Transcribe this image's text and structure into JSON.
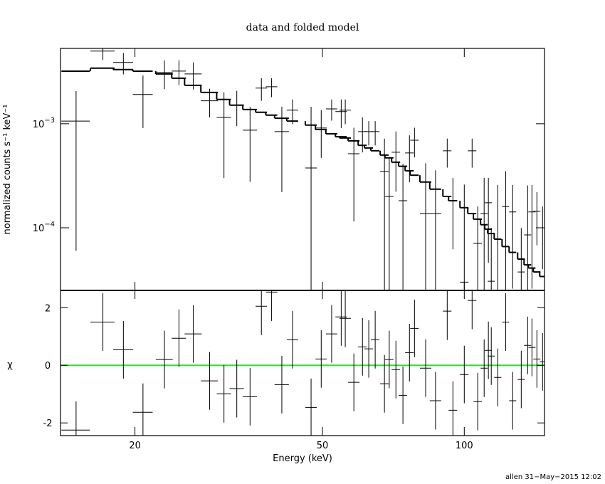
{
  "chart_data": [
    {
      "type": "spectrum",
      "title": "data and folded model",
      "ylabel": "normalized counts s⁻¹ keV⁻¹",
      "log_x": true,
      "log_y": true,
      "xlim": [
        13.9,
        148
      ],
      "ylim": [
        2.5e-05,
        0.0053
      ],
      "yticks": [
        {
          "value": 0.001,
          "label": "10",
          "exponent": "−3"
        },
        {
          "value": 0.0001,
          "label": "10",
          "exponent": "−4"
        }
      ],
      "color": "#000000",
      "x": [
        15.0,
        17.1,
        18.9,
        20.8,
        23.1,
        24.8,
        26.6,
        28.8,
        30.9,
        32.9,
        35.1,
        37.1,
        39.0,
        41.0,
        43.2,
        47.3,
        49.7,
        52.3,
        54.8,
        55.9,
        58.3,
        60.8,
        62.7,
        64.7,
        67.7,
        69.3,
        71.6,
        74.1,
        76.5,
        78.4,
        82.8,
        86.9,
        92.0,
        94.6,
        100,
        103.9,
        106.8,
        110.2,
        112.5,
        114.1,
        117.8,
        122.4,
        126.7,
        132.1,
        136.3,
        139.2,
        142.6,
        146.6
      ],
      "xerr": [
        1.04,
        1.01,
        0.92,
        1.01,
        0.96,
        0.86,
        1.11,
        1.2,
        1.08,
        1.14,
        1.22,
        1.03,
        1.09,
        1.43,
        1.2,
        1.32,
        1.38,
        1.46,
        1.53,
        1.56,
        1.62,
        1.27,
        1.31,
        1.35,
        1.41,
        1.45,
        1.49,
        1.55,
        1.6,
        1.64,
        2.3,
        2.42,
        1.92,
        1.98,
        2.09,
        2.17,
        2.23,
        1.92,
        1.96,
        1.99,
        2.05,
        2.13,
        2.2,
        2.3,
        2.37,
        2.42,
        2.48,
        2.04
      ],
      "values": [
        0.00106,
        0.005,
        0.00388,
        0.00191,
        0.00311,
        0.00321,
        0.00301,
        0.00166,
        0.00115,
        0.00151,
        0.000867,
        0.0022,
        0.00227,
        0.00084,
        0.00135,
        0.000376,
        0.00091,
        0.00139,
        0.00131,
        0.00135,
        0.000515,
        0.00084,
        0.00084,
        0.00084,
        0.000348,
        0.0002,
        0.000532,
        0.000182,
        0.000524,
        0.000695,
        0.000137,
        0.000137,
        0.000549,
        0.000182,
        3e-05,
        0.000549,
        7.07e-05,
        0.000137,
        0.000174,
        3.06e-05,
        7.77e-05,
        0.00016,
        0.000142,
        3.76e-05,
        8.55e-05,
        0.000142,
        0.000144,
        0.0001
      ],
      "yerr": [
        0.001,
        0.0009,
        0.0009,
        0.001,
        0.00096,
        0.00086,
        0.00087,
        0.00051,
        0.00085,
        0.00056,
        0.00059,
        0.00054,
        0.00047,
        0.00062,
        0.00036,
        0.00108,
        0.00044,
        0.00032,
        0.0004,
        0.00036,
        0.0004,
        0.00031,
        0.00022,
        0.00022,
        0.00037,
        0.00028,
        0.00031,
        0.00023,
        0.00025,
        0.00022,
        0.00028,
        0.00022,
        0.00017,
        0.00012,
        0.00023,
        0.00017,
        9e-05,
        0.000165,
        0.000128,
        6.9e-05,
        0.00018,
        0.00019,
        0.000116,
        6.2e-05,
        0.00017,
        0.000116,
        7.6e-05,
        6e-05
      ],
      "model": {
        "color": "#000000",
        "values": [
          0.0032,
          0.00342,
          0.00332,
          0.0032,
          0.00301,
          0.00274,
          0.00234,
          0.002,
          0.00171,
          0.00151,
          0.00137,
          0.00129,
          0.00121,
          0.00113,
          0.00106,
          0.00097,
          0.00088,
          0.0008,
          0.00075,
          0.00073,
          0.000685,
          0.00062,
          0.000585,
          0.00055,
          0.0005,
          0.00047,
          0.000427,
          0.00039,
          0.000353,
          0.00032,
          0.000275,
          0.000235,
          0.0002,
          0.000182,
          0.000156,
          0.000137,
          0.000121,
          0.000107,
          9.7e-05,
          8.8e-05,
          7.77e-05,
          6.6e-05,
          5.8e-05,
          5e-05,
          4.4e-05,
          4.1e-05,
          3.76e-05,
          3.4e-05
        ]
      }
    },
    {
      "type": "residual",
      "ylabel": "χ",
      "xlabel": "Energy (keV)",
      "log_x": true,
      "xlim": [
        13.9,
        148
      ],
      "ylim": [
        -2.44,
        2.6
      ],
      "xticks": [
        20,
        50,
        100
      ],
      "yticks": [
        -2,
        0,
        2
      ],
      "color": "#000000",
      "zero_line_color": "#00ff00",
      "x": [
        15.0,
        17.1,
        18.9,
        20.8,
        23.1,
        24.8,
        26.6,
        28.8,
        30.9,
        32.9,
        35.1,
        37.1,
        39.0,
        41.0,
        43.2,
        47.3,
        49.7,
        52.3,
        54.8,
        55.9,
        58.3,
        60.8,
        62.7,
        64.7,
        67.7,
        69.3,
        71.6,
        74.1,
        76.5,
        78.4,
        82.8,
        86.9,
        92.0,
        94.6,
        100,
        103.9,
        106.8,
        110.2,
        112.5,
        114.1,
        117.8,
        122.4,
        126.7,
        132.1,
        136.3,
        139.2,
        142.6,
        146.6
      ],
      "xerr": [
        1.04,
        1.01,
        0.92,
        1.01,
        0.96,
        0.86,
        1.11,
        1.2,
        1.08,
        1.14,
        1.22,
        1.03,
        1.09,
        1.43,
        1.2,
        1.32,
        1.38,
        1.46,
        1.53,
        1.56,
        1.62,
        1.27,
        1.31,
        1.35,
        1.41,
        1.45,
        1.49,
        1.55,
        1.6,
        1.64,
        2.3,
        2.42,
        1.92,
        1.98,
        2.09,
        2.17,
        2.23,
        1.92,
        1.96,
        1.99,
        2.05,
        2.13,
        2.2,
        2.3,
        2.37,
        2.42,
        2.48,
        2.04
      ],
      "values": [
        -2.25,
        1.5,
        0.54,
        -1.63,
        0.2,
        0.94,
        1.09,
        -0.54,
        -0.99,
        -0.81,
        -1.09,
        2.05,
        2.54,
        -0.67,
        0.89,
        -1.46,
        0.22,
        1.09,
        1.68,
        1.63,
        -0.59,
        0.64,
        0.57,
        0.89,
        -0.64,
        0.2,
        -0.15,
        -1.04,
        0.44,
        1.28,
        -0.1,
        -1.23,
        1.88,
        -1.56,
        -0.32,
        2.25,
        -1.26,
        -0.1,
        0.52,
        0.32,
        -0.42,
        1.5,
        -1.23,
        -0.49,
        0.69,
        0.62,
        0.22,
        0.12
      ],
      "yerr": [
        1,
        1,
        1,
        1,
        1,
        1,
        1,
        1,
        1,
        1,
        1,
        1,
        1,
        1,
        1,
        1,
        1,
        1,
        1,
        1,
        1,
        1,
        1,
        1,
        1,
        1,
        1,
        1,
        1,
        1,
        1,
        1,
        1,
        1,
        1,
        1,
        1,
        1,
        1,
        1,
        1,
        1,
        1,
        1,
        1,
        1,
        1,
        1
      ]
    }
  ],
  "footer": "allen 31−May−2015 12:02"
}
